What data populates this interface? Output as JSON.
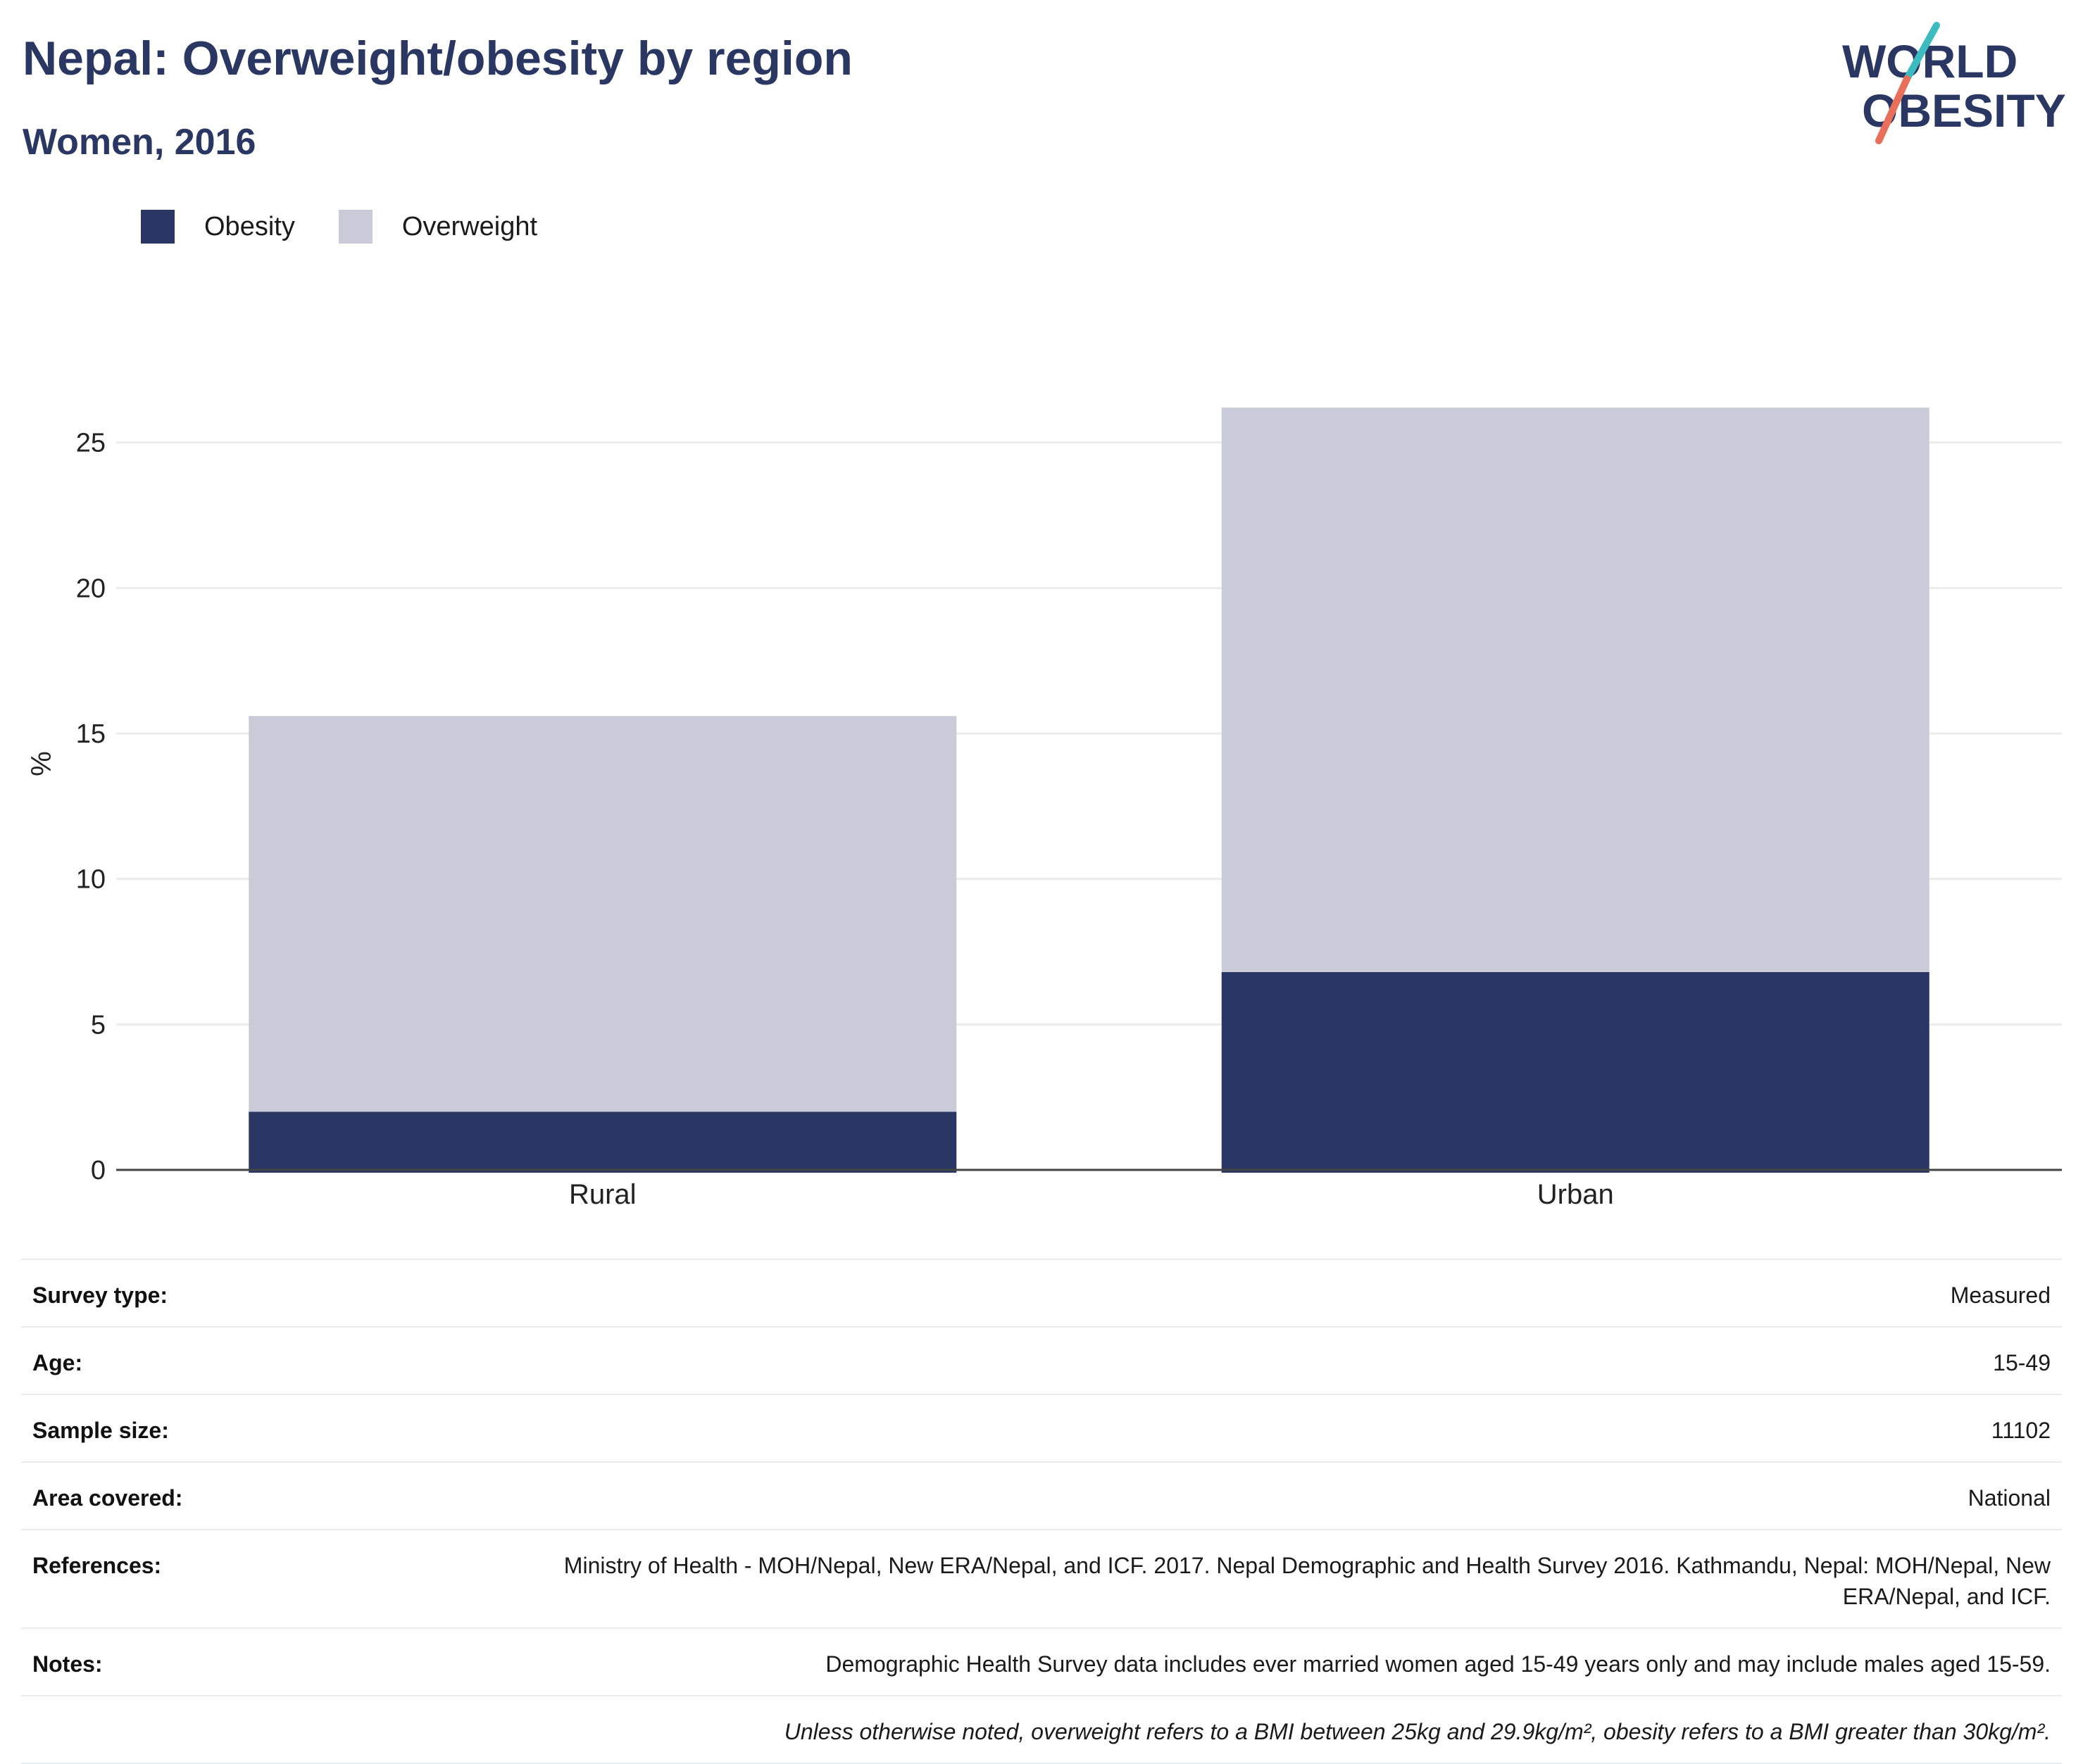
{
  "header": {
    "title": "Nepal: Overweight/obesity by region",
    "subtitle": "Women, 2016",
    "logo_line1": "WORLD",
    "logo_line2": "OBESITY"
  },
  "colors": {
    "title": "#2b3763",
    "obesity": "#2a3663",
    "overweight": "#c9ccd8",
    "logo_teal": "#3cbcc0",
    "logo_coral": "#e8705a"
  },
  "chart_data": {
    "type": "bar",
    "stacked": true,
    "categories": [
      "Rural",
      "Urban"
    ],
    "series": [
      {
        "name": "Obesity",
        "values": [
          2.0,
          6.8
        ]
      },
      {
        "name": "Overweight",
        "values": [
          13.6,
          19.4
        ]
      }
    ],
    "ylabel": "%",
    "ylim": [
      0,
      27
    ],
    "yticks": [
      0,
      5,
      10,
      15,
      20,
      25
    ],
    "grid": true,
    "legend": "top-left"
  },
  "info": {
    "rows": [
      {
        "label": "Survey type:",
        "value": "Measured"
      },
      {
        "label": "Age:",
        "value": "15-49"
      },
      {
        "label": "Sample size:",
        "value": "11102"
      },
      {
        "label": "Area covered:",
        "value": "National"
      },
      {
        "label": "References:",
        "value": "Ministry of Health - MOH/Nepal, New ERA/Nepal, and ICF. 2017. Nepal Demographic and Health Survey 2016. Kathmandu, Nepal: MOH/Nepal, New ERA/Nepal, and ICF."
      },
      {
        "label": "Notes:",
        "value": "Demographic Health Survey data includes ever married women aged 15-49 years only and may include males aged 15-59."
      }
    ],
    "footnote": "Unless otherwise noted, overweight refers to a BMI between 25kg and 29.9kg/m², obesity refers to a BMI greater than 30kg/m²."
  }
}
